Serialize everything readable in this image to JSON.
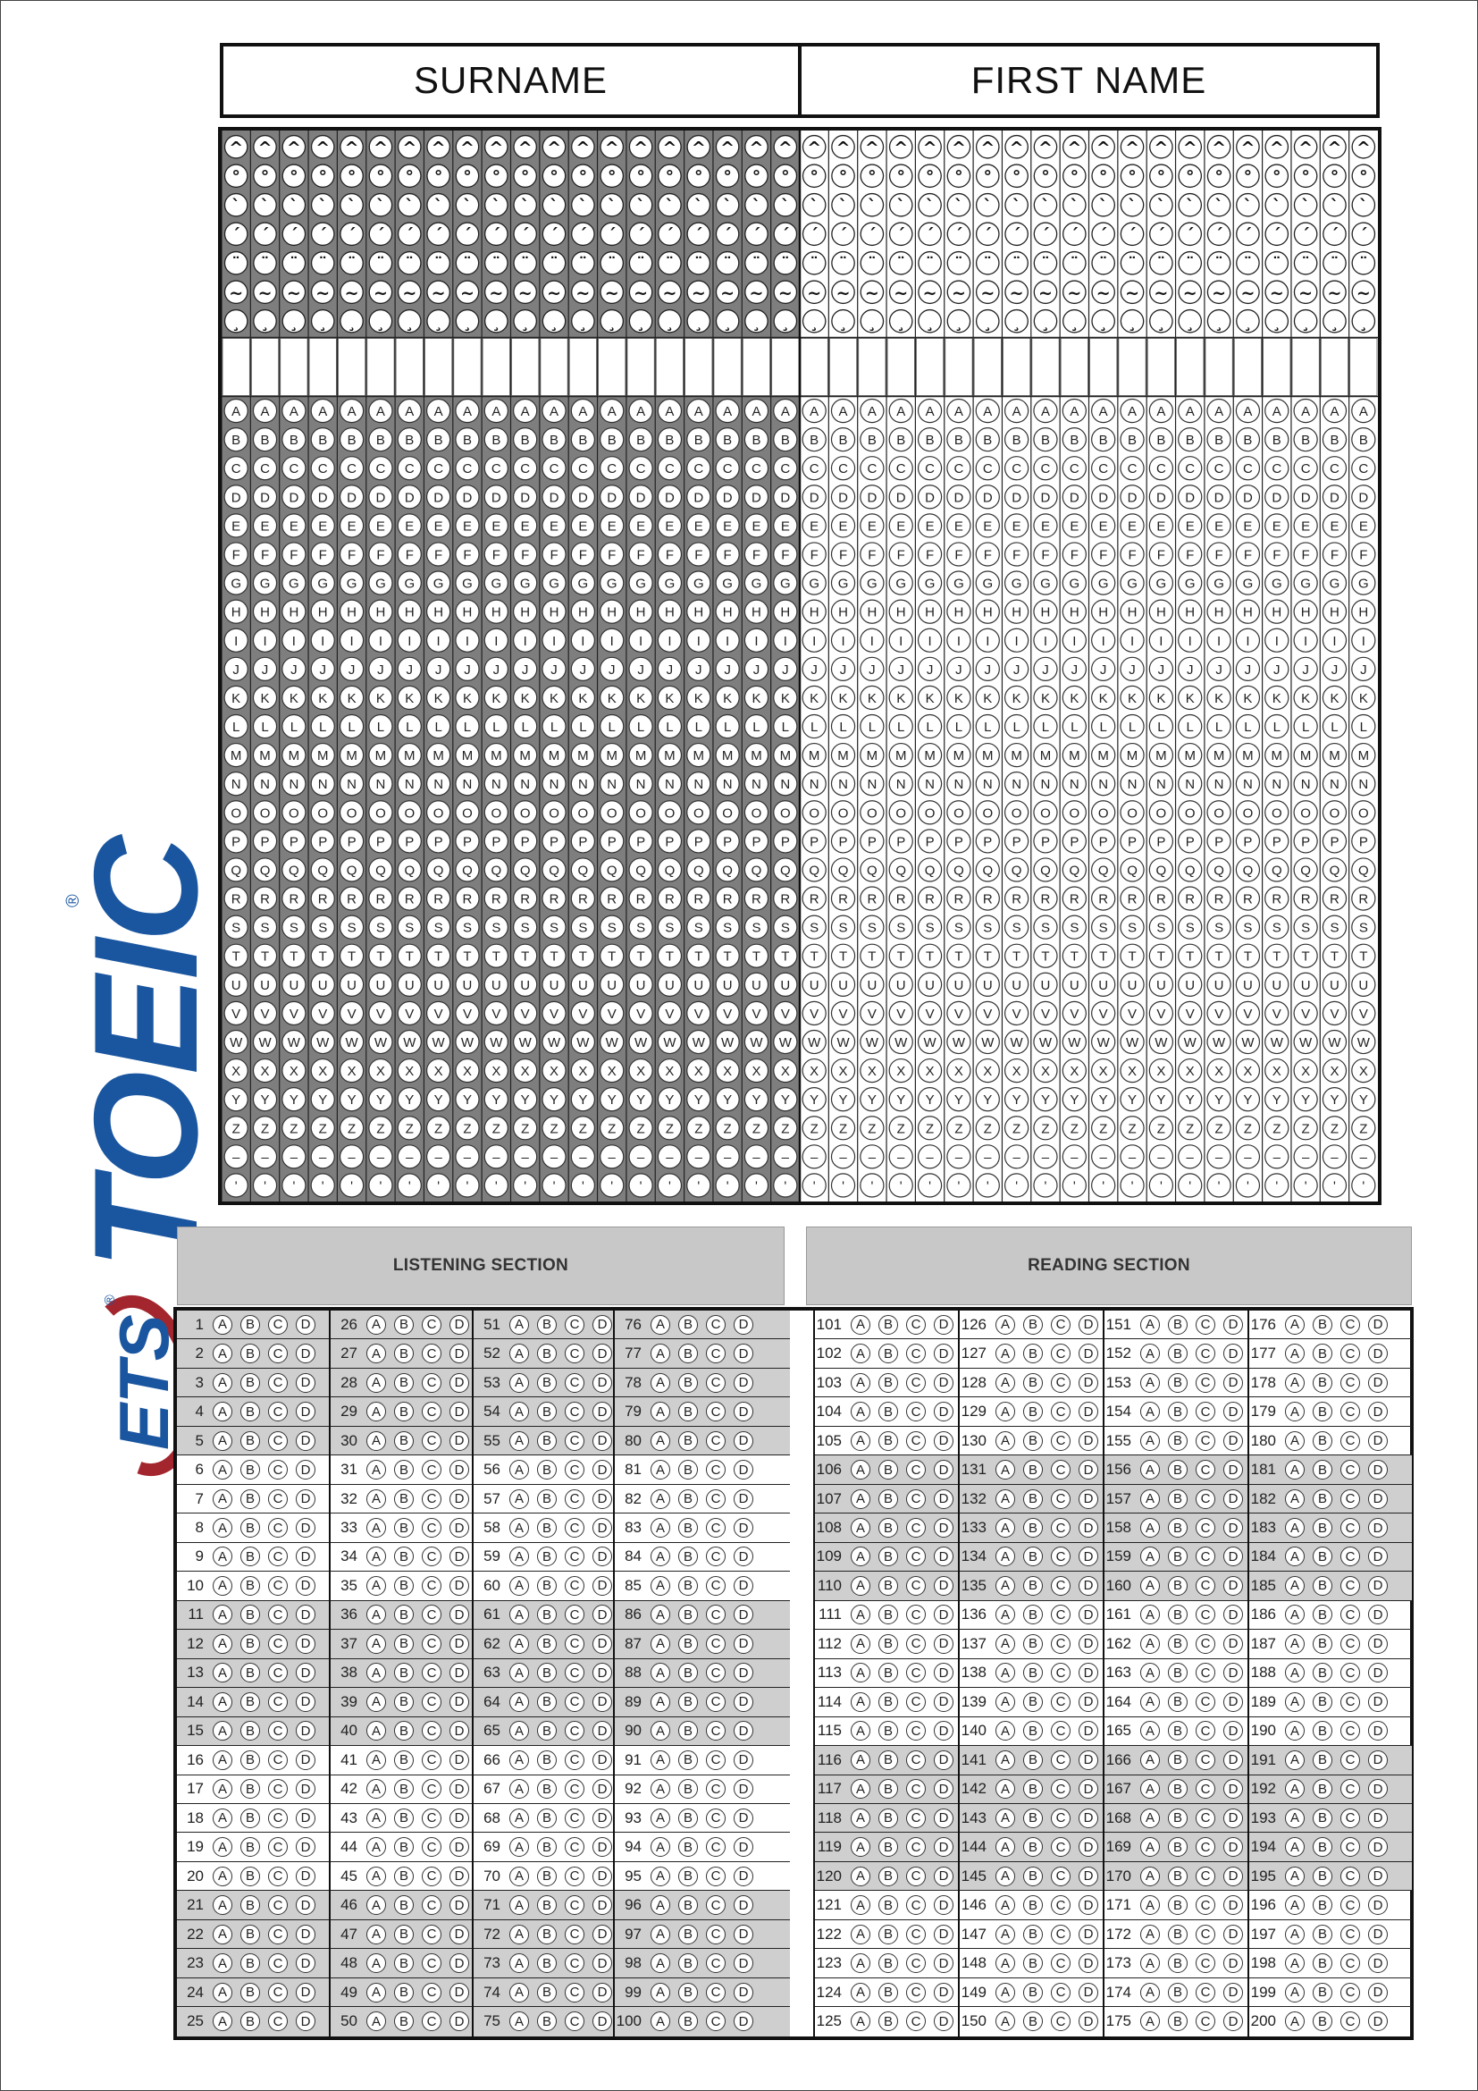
{
  "header": {
    "surname": "SURNAME",
    "first_name": "FIRST NAME"
  },
  "logo": {
    "brand": "TOEIC",
    "org": "ETS",
    "registered": "®"
  },
  "name_grid": {
    "surname_columns": 20,
    "first_name_columns": 20,
    "symbol_rows": [
      "^",
      "°",
      "`",
      "´",
      "¨",
      "~",
      "¸"
    ],
    "letters": [
      "A",
      "B",
      "C",
      "D",
      "E",
      "F",
      "G",
      "H",
      "I",
      "J",
      "K",
      "L",
      "M",
      "N",
      "O",
      "P",
      "Q",
      "R",
      "S",
      "T",
      "U",
      "V",
      "W",
      "X",
      "Y",
      "Z",
      "–",
      "'"
    ]
  },
  "sections": {
    "listening": {
      "title": "LISTENING SECTION",
      "first_question": 1,
      "last_question": 100
    },
    "reading": {
      "title": "READING SECTION",
      "first_question": 101,
      "last_question": 200
    }
  },
  "choices": [
    "A",
    "B",
    "C",
    "D"
  ],
  "colors": {
    "brand_blue": "#1a56a0",
    "brand_red": "#a3262e",
    "surname_shade": "#7e7e7e",
    "section_header": "#c8c8c8",
    "row_shade": "#cfcfcf"
  }
}
